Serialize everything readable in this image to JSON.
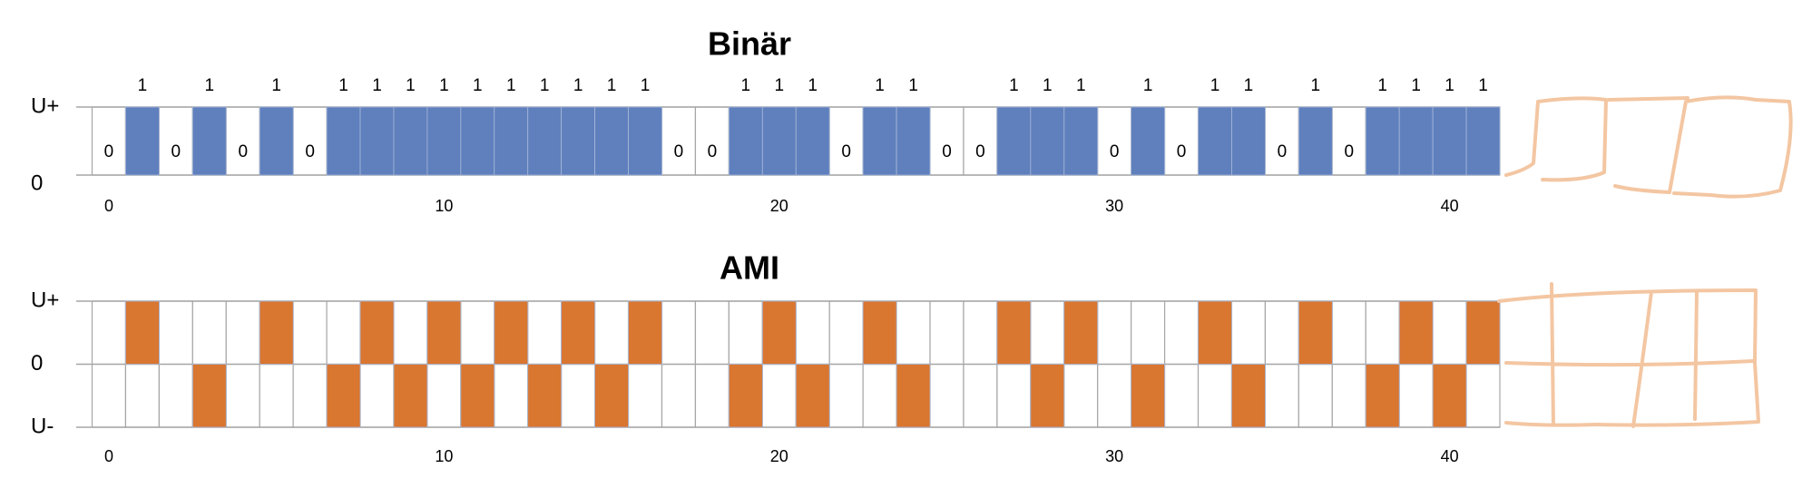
{
  "chart_data": [
    {
      "type": "bar",
      "title": "Binär",
      "x": [
        0,
        1,
        2,
        3,
        4,
        5,
        6,
        7,
        8,
        9,
        10,
        11,
        12,
        13,
        14,
        15,
        16,
        17,
        18,
        19,
        20,
        21,
        22,
        23,
        24,
        25,
        26,
        27,
        28,
        29,
        30,
        31,
        32,
        33,
        34,
        35,
        36,
        37,
        38,
        39,
        40,
        41
      ],
      "values": [
        0,
        1,
        0,
        1,
        0,
        1,
        0,
        1,
        1,
        1,
        1,
        1,
        1,
        1,
        1,
        1,
        1,
        0,
        0,
        1,
        1,
        1,
        0,
        1,
        1,
        0,
        0,
        1,
        1,
        1,
        0,
        1,
        0,
        1,
        1,
        0,
        1,
        0,
        1,
        1,
        1,
        1
      ],
      "color": "#5f80bd",
      "data_labels": true,
      "xlim": [
        -0.5,
        41.5
      ],
      "xticks": [
        0,
        10,
        20,
        30,
        40
      ],
      "ylim": [
        0,
        1
      ],
      "yticks": [
        0,
        {
          "value": 1,
          "label": "U+"
        }
      ]
    },
    {
      "type": "bar",
      "title": "AMI",
      "x": [
        0,
        1,
        2,
        3,
        4,
        5,
        6,
        7,
        8,
        9,
        10,
        11,
        12,
        13,
        14,
        15,
        16,
        17,
        18,
        19,
        20,
        21,
        22,
        23,
        24,
        25,
        26,
        27,
        28,
        29,
        30,
        31,
        32,
        33,
        34,
        35,
        36,
        37,
        38,
        39,
        40,
        41
      ],
      "values": [
        0,
        1,
        0,
        -1,
        0,
        1,
        0,
        -1,
        1,
        -1,
        1,
        -1,
        1,
        -1,
        1,
        -1,
        1,
        0,
        0,
        -1,
        1,
        -1,
        0,
        1,
        -1,
        0,
        0,
        1,
        -1,
        1,
        0,
        -1,
        0,
        1,
        -1,
        0,
        1,
        0,
        -1,
        1,
        -1,
        1
      ],
      "color": "#d97630",
      "data_labels": false,
      "xlim": [
        -0.5,
        41.5
      ],
      "xticks": [
        0,
        10,
        20,
        30,
        40
      ],
      "ylim": [
        -1,
        1
      ],
      "yticks": [
        {
          "value": -1,
          "label": "U-"
        },
        0,
        {
          "value": 1,
          "label": "U+"
        }
      ]
    }
  ]
}
